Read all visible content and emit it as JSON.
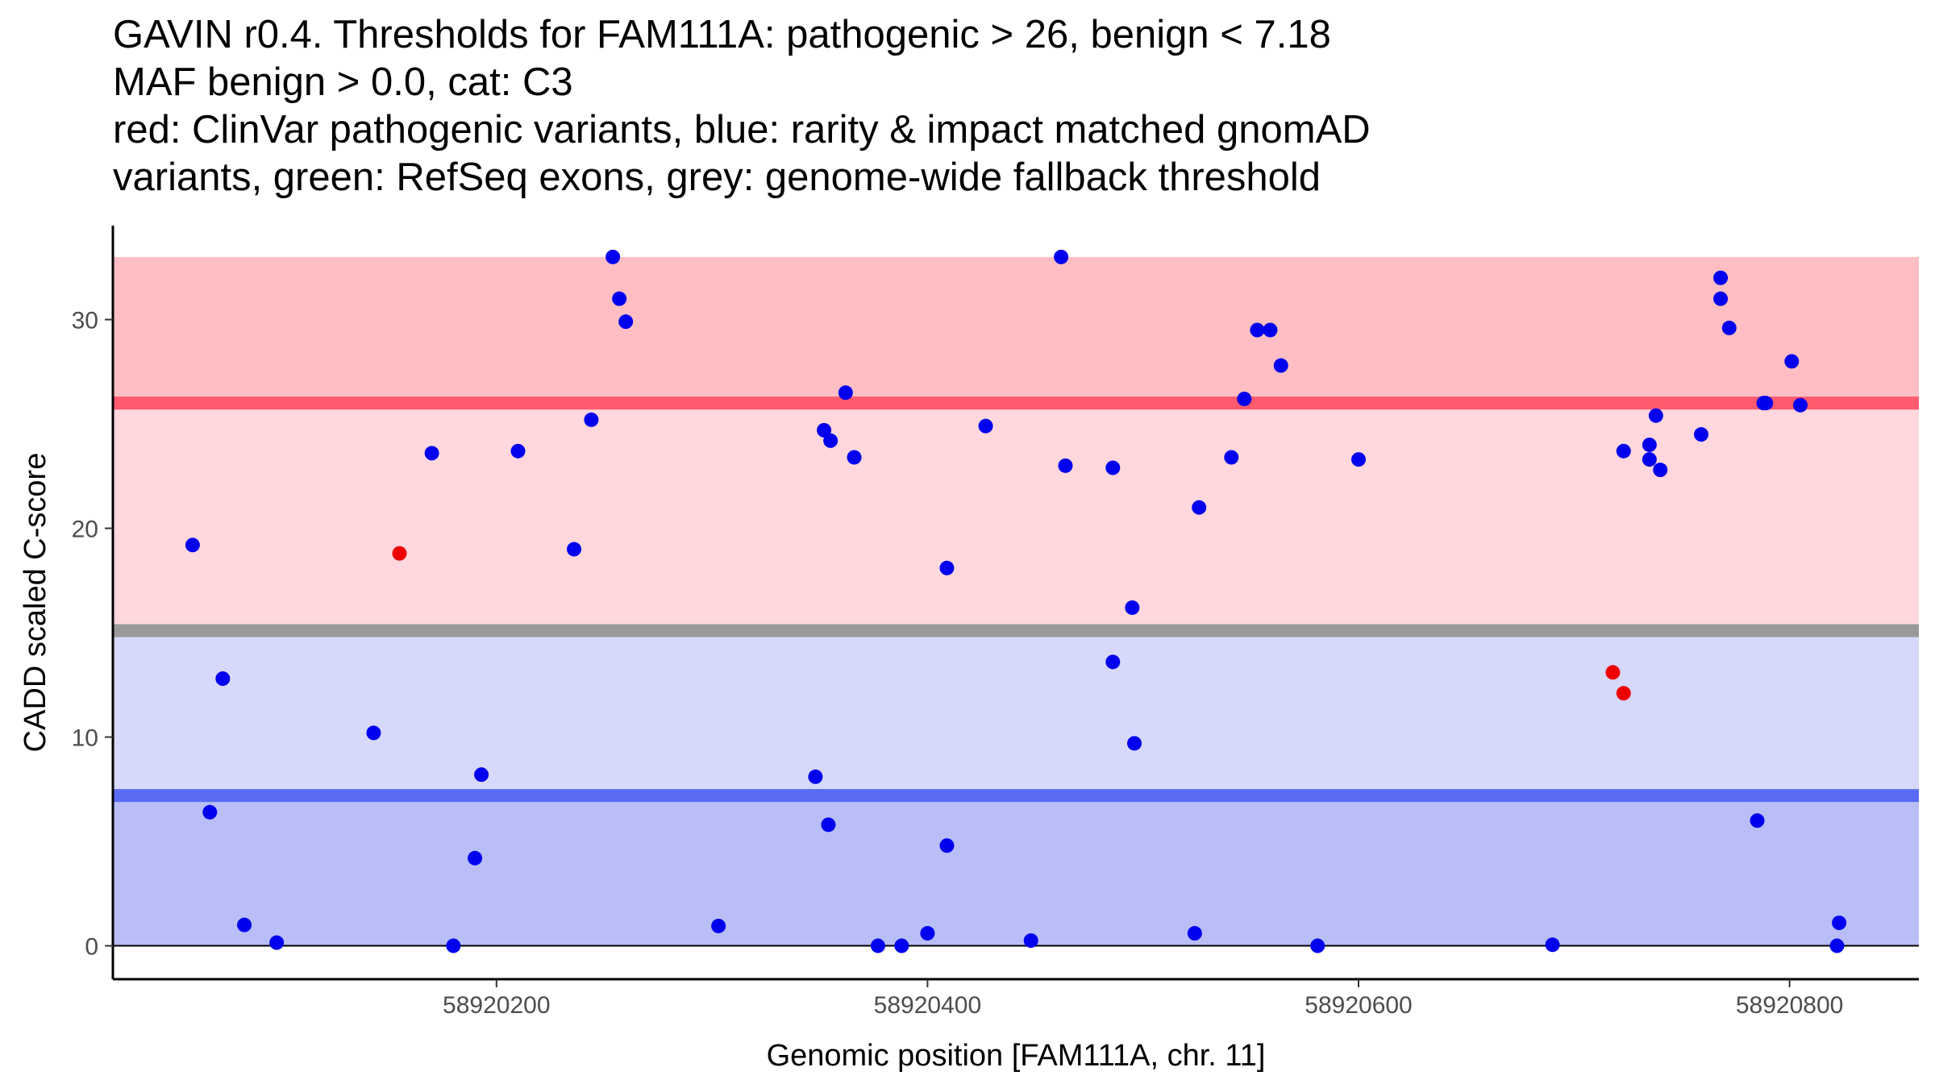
{
  "title_lines": [
    "GAVIN r0.4. Thresholds for FAM111A: pathogenic > 26, benign < 7.18",
    "MAF benign > 0.0, cat: C3",
    "red: ClinVar pathogenic variants, blue: rarity & impact matched gnomAD",
    "variants, green: RefSeq exons, grey: genome-wide fallback threshold"
  ],
  "chart_data": {
    "type": "scatter",
    "xlabel": "Genomic position [FAM111A, chr. 11]",
    "ylabel": "CADD scaled C-score",
    "xlim": [
      58920022,
      58920860
    ],
    "ylim": [
      -1.6,
      34.5
    ],
    "x_ticks": [
      58920200,
      58920400,
      58920600,
      58920800
    ],
    "y_ticks": [
      0,
      10,
      20,
      30
    ],
    "bands": [
      {
        "name": "pathogenic-top-band",
        "y0": 26,
        "y1": 33,
        "color": "#ffbec4"
      },
      {
        "name": "pathogenic-band",
        "y0": 15.3,
        "y1": 26,
        "color": "#ffd7dc"
      },
      {
        "name": "fallback-upper-benign-band",
        "y0": 7.18,
        "y1": 15.3,
        "color": "#d6d9fb"
      },
      {
        "name": "benign-band",
        "y0": 0,
        "y1": 7.18,
        "color": "#b9bef9"
      }
    ],
    "threshold_lines": [
      {
        "name": "pathogenic-threshold-line",
        "y": 26,
        "color": "#ff5a6e"
      },
      {
        "name": "genome-wide-fallback-line",
        "y": 15.1,
        "color": "#999999"
      },
      {
        "name": "benign-threshold-line",
        "y": 7.2,
        "color": "#5a6cf4"
      }
    ],
    "series": [
      {
        "name": "ClinVar pathogenic",
        "color": "#ee0000",
        "points": [
          [
            58920155,
            18.8
          ],
          [
            58920718,
            13.1
          ],
          [
            58920723,
            12.1
          ]
        ]
      },
      {
        "name": "gnomAD matched",
        "color": "#0000ee",
        "points": [
          [
            58920059,
            19.2
          ],
          [
            58920067,
            6.4
          ],
          [
            58920073,
            12.8
          ],
          [
            58920083,
            1.0
          ],
          [
            58920098,
            0.15
          ],
          [
            58920143,
            10.2
          ],
          [
            58920170,
            23.6
          ],
          [
            58920180,
            0.0
          ],
          [
            58920190,
            4.2
          ],
          [
            58920193,
            8.2
          ],
          [
            58920210,
            23.7
          ],
          [
            58920236,
            19.0
          ],
          [
            58920244,
            25.2
          ],
          [
            58920254,
            33.0
          ],
          [
            58920257,
            31.0
          ],
          [
            58920260,
            29.9
          ],
          [
            58920303,
            0.95
          ],
          [
            58920348,
            8.1
          ],
          [
            58920352,
            24.7
          ],
          [
            58920354,
            5.8
          ],
          [
            58920355,
            24.2
          ],
          [
            58920362,
            26.5
          ],
          [
            58920366,
            23.4
          ],
          [
            58920377,
            0.0
          ],
          [
            58920388,
            0.0
          ],
          [
            58920400,
            0.6
          ],
          [
            58920409,
            18.1
          ],
          [
            58920409,
            4.8
          ],
          [
            58920427,
            24.9
          ],
          [
            58920448,
            0.25
          ],
          [
            58920462,
            33.0
          ],
          [
            58920464,
            23.0
          ],
          [
            58920486,
            22.9
          ],
          [
            58920486,
            13.6
          ],
          [
            58920495,
            16.2
          ],
          [
            58920496,
            9.7
          ],
          [
            58920524,
            0.6
          ],
          [
            58920526,
            21.0
          ],
          [
            58920541,
            23.4
          ],
          [
            58920547,
            26.2
          ],
          [
            58920553,
            29.5
          ],
          [
            58920559,
            29.5
          ],
          [
            58920564,
            27.8
          ],
          [
            58920581,
            0.0
          ],
          [
            58920600,
            23.3
          ],
          [
            58920690,
            0.05
          ],
          [
            58920723,
            23.7
          ],
          [
            58920735,
            24.0
          ],
          [
            58920735,
            23.3
          ],
          [
            58920738,
            25.4
          ],
          [
            58920740,
            22.8
          ],
          [
            58920759,
            24.5
          ],
          [
            58920768,
            32.0
          ],
          [
            58920768,
            31.0
          ],
          [
            58920772,
            29.6
          ],
          [
            58920785,
            6.0
          ],
          [
            58920788,
            26.0
          ],
          [
            58920789,
            26.0
          ],
          [
            58920801,
            28.0
          ],
          [
            58920805,
            25.9
          ],
          [
            58920822,
            0.0
          ],
          [
            58920823,
            1.1
          ]
        ]
      }
    ]
  }
}
